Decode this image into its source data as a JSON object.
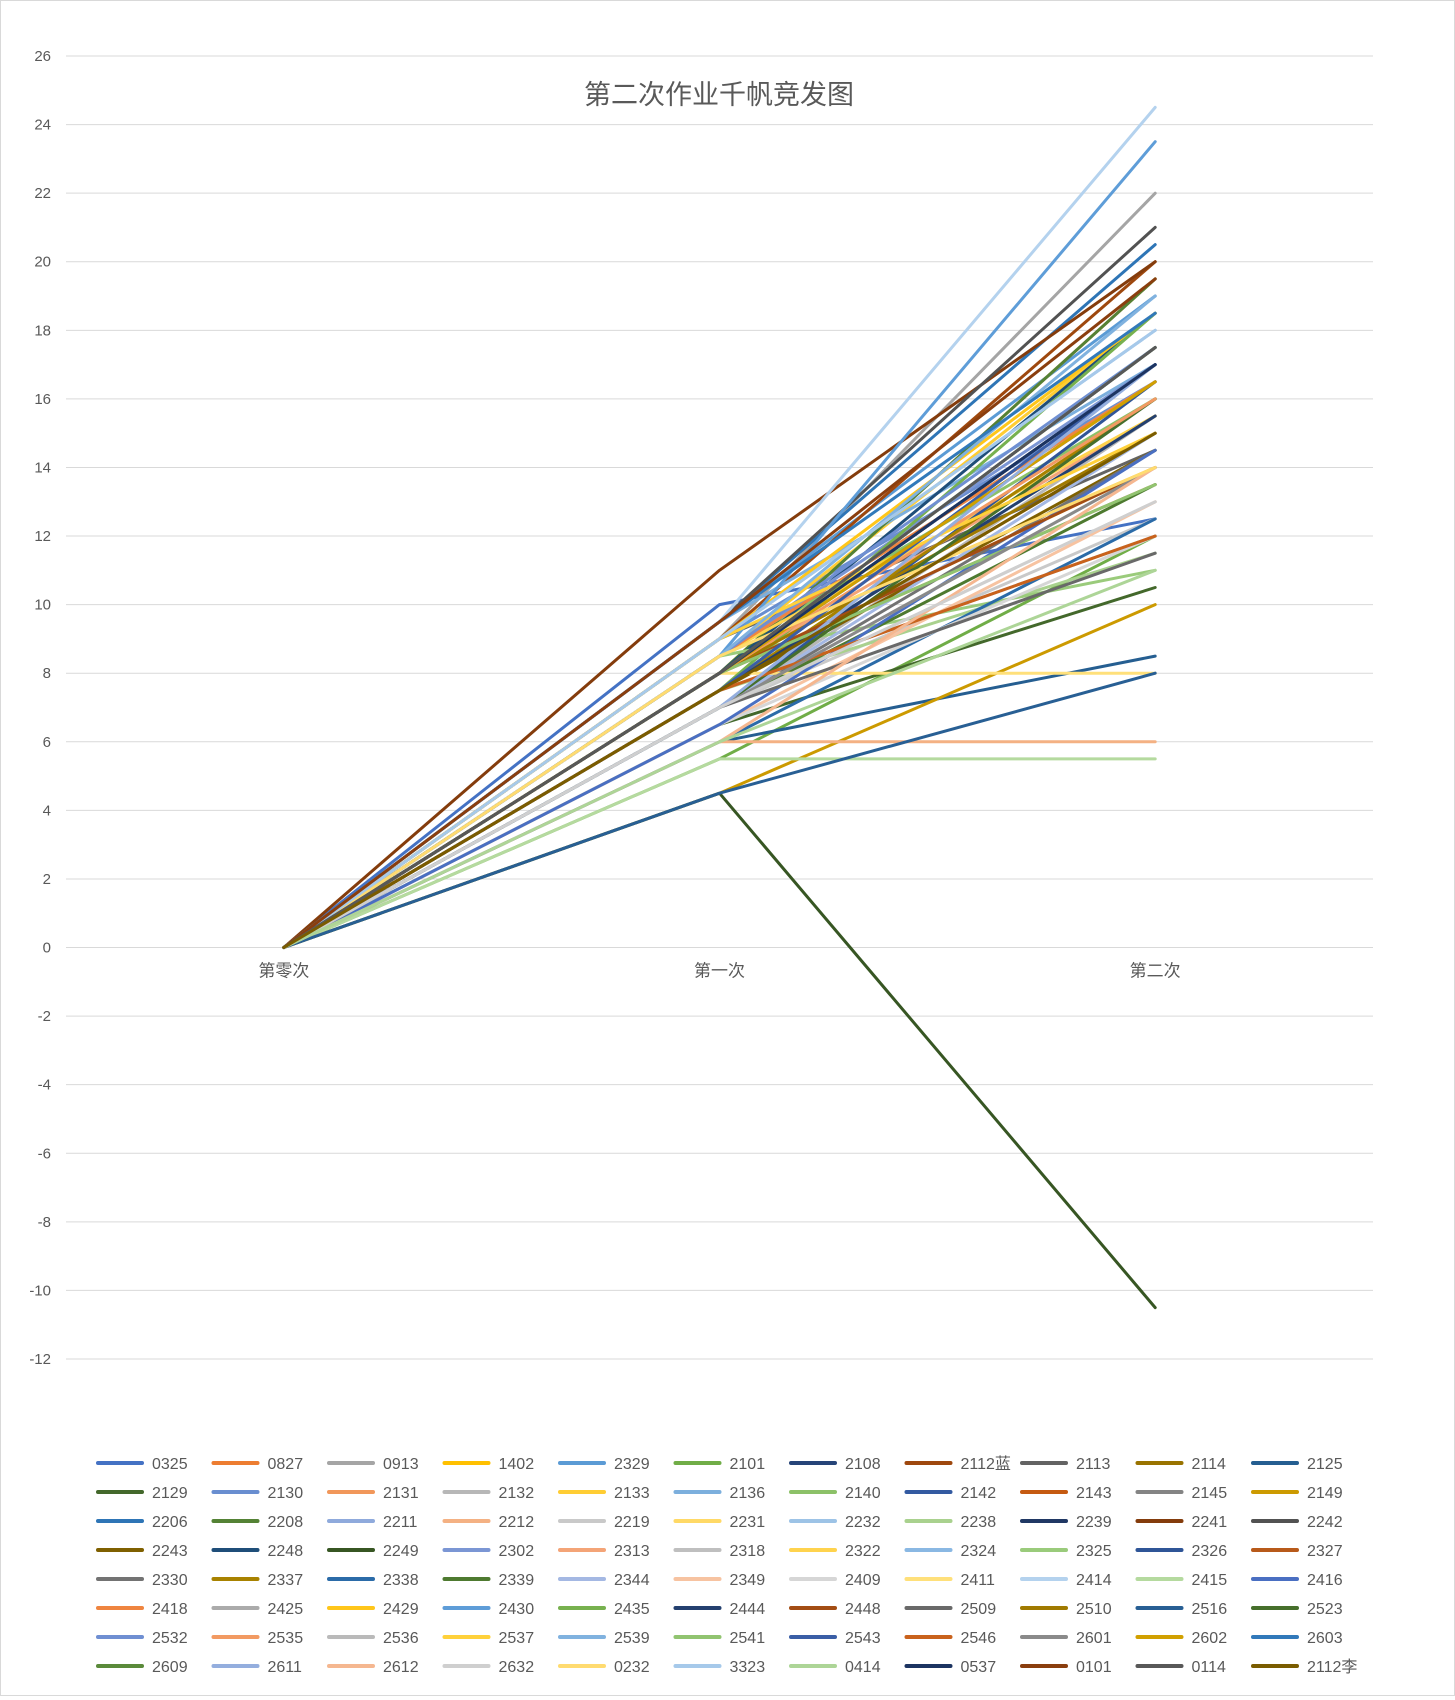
{
  "chart_data": {
    "type": "line",
    "title": "第二次作业千帆竞发图",
    "categories": [
      "第零次",
      "第一次",
      "第二次"
    ],
    "ylim": [
      -12,
      26
    ],
    "yticks": [
      -12,
      -10,
      -8,
      -6,
      -4,
      -2,
      0,
      2,
      4,
      6,
      8,
      10,
      12,
      14,
      16,
      18,
      20,
      22,
      24,
      26
    ],
    "grid": true,
    "legend_position": "bottom",
    "series": [
      {
        "name": "0325",
        "color": "#4472C4",
        "values": [
          0,
          10,
          12.5
        ]
      },
      {
        "name": "0827",
        "color": "#ED7D31",
        "values": [
          0,
          8,
          14
        ]
      },
      {
        "name": "0913",
        "color": "#A5A5A5",
        "values": [
          0,
          9,
          22
        ]
      },
      {
        "name": "1402",
        "color": "#FFC000",
        "values": [
          0,
          8.5,
          14
        ]
      },
      {
        "name": "2329",
        "color": "#5B9BD5",
        "values": [
          0,
          9.5,
          19
        ]
      },
      {
        "name": "2101",
        "color": "#70AD47",
        "values": [
          0,
          5.5,
          12
        ]
      },
      {
        "name": "2108",
        "color": "#264478",
        "values": [
          0,
          8,
          17
        ]
      },
      {
        "name": "2112蓝",
        "color": "#9E480E",
        "values": [
          0,
          9,
          20
        ]
      },
      {
        "name": "2113",
        "color": "#636363",
        "values": [
          0,
          9,
          14.5
        ]
      },
      {
        "name": "2114",
        "color": "#997300",
        "values": [
          0,
          7.5,
          16
        ]
      },
      {
        "name": "2125",
        "color": "#255E91",
        "values": [
          0,
          6,
          8.5
        ]
      },
      {
        "name": "2129",
        "color": "#43682B",
        "values": [
          0,
          6.5,
          10.5
        ]
      },
      {
        "name": "2130",
        "color": "#698ED0",
        "values": [
          0,
          9,
          16.5
        ]
      },
      {
        "name": "2131",
        "color": "#F1975A",
        "values": [
          0,
          8,
          19.5
        ]
      },
      {
        "name": "2132",
        "color": "#B7B7B7",
        "values": [
          0,
          7,
          15.5
        ]
      },
      {
        "name": "2133",
        "color": "#FFCD33",
        "values": [
          0,
          8.5,
          18.5
        ]
      },
      {
        "name": "2136",
        "color": "#7CAFDD",
        "values": [
          0,
          9.5,
          17
        ]
      },
      {
        "name": "2140",
        "color": "#8CC168",
        "values": [
          0,
          8.5,
          16
        ]
      },
      {
        "name": "2142",
        "color": "#335AA1",
        "values": [
          0,
          8,
          16.5
        ]
      },
      {
        "name": "2143",
        "color": "#C55A11",
        "values": [
          0,
          7.5,
          15
        ]
      },
      {
        "name": "2145",
        "color": "#848484",
        "values": [
          0,
          8,
          17.5
        ]
      },
      {
        "name": "2149",
        "color": "#CC9A00",
        "values": [
          0,
          4.5,
          10
        ]
      },
      {
        "name": "2206",
        "color": "#2E75B6",
        "values": [
          0,
          9.5,
          20.5
        ]
      },
      {
        "name": "2208",
        "color": "#548235",
        "values": [
          0,
          8,
          19.5
        ]
      },
      {
        "name": "2211",
        "color": "#8FAADC",
        "values": [
          0,
          7.5,
          17
        ]
      },
      {
        "name": "2212",
        "color": "#F4B183",
        "values": [
          0,
          6,
          6
        ]
      },
      {
        "name": "2219",
        "color": "#C9C9C9",
        "values": [
          0,
          7,
          12.5
        ]
      },
      {
        "name": "2231",
        "color": "#FFD966",
        "values": [
          0,
          8,
          14
        ]
      },
      {
        "name": "2232",
        "color": "#9DC3E6",
        "values": [
          0,
          8.5,
          16.5
        ]
      },
      {
        "name": "2238",
        "color": "#A9D18E",
        "values": [
          0,
          7.5,
          11.5
        ]
      },
      {
        "name": "2239",
        "color": "#203864",
        "values": [
          0,
          8,
          17
        ]
      },
      {
        "name": "2241",
        "color": "#843C0C",
        "values": [
          0,
          11,
          20
        ]
      },
      {
        "name": "2242",
        "color": "#525252",
        "values": [
          0,
          9.5,
          21
        ]
      },
      {
        "name": "2243",
        "color": "#7F6000",
        "values": [
          0,
          7.5,
          14.5
        ]
      },
      {
        "name": "2248",
        "color": "#1F4E79",
        "values": [
          0,
          8,
          18.5
        ]
      },
      {
        "name": "2249",
        "color": "#375623",
        "values": [
          0,
          4.5,
          -10.5
        ]
      },
      {
        "name": "2302",
        "color": "#7B96D4",
        "values": [
          0,
          8.5,
          17
        ]
      },
      {
        "name": "2313",
        "color": "#F4A477",
        "values": [
          0,
          8,
          15.5
        ]
      },
      {
        "name": "2318",
        "color": "#BFBFBF",
        "values": [
          0,
          7,
          13
        ]
      },
      {
        "name": "2322",
        "color": "#FFD34D",
        "values": [
          0,
          8.5,
          15.5
        ]
      },
      {
        "name": "2324",
        "color": "#8AB8E3",
        "values": [
          0,
          9,
          18
        ]
      },
      {
        "name": "2325",
        "color": "#9ACB7B",
        "values": [
          0,
          8.5,
          11
        ]
      },
      {
        "name": "2326",
        "color": "#2F5597",
        "values": [
          0,
          7,
          16.5
        ]
      },
      {
        "name": "2327",
        "color": "#B85A1A",
        "values": [
          0,
          8,
          13.5
        ]
      },
      {
        "name": "2330",
        "color": "#737373",
        "values": [
          0,
          7,
          14.5
        ]
      },
      {
        "name": "2337",
        "color": "#A88200",
        "values": [
          0,
          7.5,
          16
        ]
      },
      {
        "name": "2338",
        "color": "#2B6BA8",
        "values": [
          0,
          6,
          12.5
        ]
      },
      {
        "name": "2339",
        "color": "#4E7A30",
        "values": [
          0,
          7,
          13.5
        ]
      },
      {
        "name": "2344",
        "color": "#A4B8E3",
        "values": [
          0,
          7,
          15
        ]
      },
      {
        "name": "2349",
        "color": "#F7C3A1",
        "values": [
          0,
          6.5,
          13
        ]
      },
      {
        "name": "2409",
        "color": "#D6D6D6",
        "values": [
          0,
          6.5,
          12
        ]
      },
      {
        "name": "2411",
        "color": "#FFE07A",
        "values": [
          0,
          8,
          8
        ]
      },
      {
        "name": "2414",
        "color": "#B4D2EE",
        "values": [
          0,
          9.5,
          24.5
        ]
      },
      {
        "name": "2415",
        "color": "#B5DA9F",
        "values": [
          0,
          5.5,
          5.5
        ]
      },
      {
        "name": "2416",
        "color": "#4A6FC2",
        "values": [
          0,
          6.5,
          14.5
        ]
      },
      {
        "name": "2418",
        "color": "#EF8540",
        "values": [
          0,
          8.5,
          16.5
        ]
      },
      {
        "name": "2425",
        "color": "#ABABAB",
        "values": [
          0,
          7.5,
          12
        ]
      },
      {
        "name": "2429",
        "color": "#FFC61A",
        "values": [
          0,
          9,
          18.5
        ]
      },
      {
        "name": "2430",
        "color": "#5E9DD8",
        "values": [
          0,
          8.5,
          23.5
        ]
      },
      {
        "name": "2435",
        "color": "#77B14F",
        "values": [
          0,
          7.5,
          18.5
        ]
      },
      {
        "name": "2444",
        "color": "#24406F",
        "values": [
          0,
          7.5,
          15.5
        ]
      },
      {
        "name": "2448",
        "color": "#A34D14",
        "values": [
          0,
          8,
          14
        ]
      },
      {
        "name": "2509",
        "color": "#696969",
        "values": [
          0,
          7,
          11.5
        ]
      },
      {
        "name": "2510",
        "color": "#A07A00",
        "values": [
          0,
          8,
          15
        ]
      },
      {
        "name": "2516",
        "color": "#285F94",
        "values": [
          0,
          4.5,
          8
        ]
      },
      {
        "name": "2523",
        "color": "#466F2C",
        "values": [
          0,
          7,
          16
        ]
      },
      {
        "name": "2532",
        "color": "#6F8FD2",
        "values": [
          0,
          8.5,
          17.5
        ]
      },
      {
        "name": "2535",
        "color": "#F29A62",
        "values": [
          0,
          8,
          16
        ]
      },
      {
        "name": "2536",
        "color": "#BABABA",
        "values": [
          0,
          7,
          14
        ]
      },
      {
        "name": "2537",
        "color": "#FFD13A",
        "values": [
          0,
          9,
          15
        ]
      },
      {
        "name": "2539",
        "color": "#80B2DF",
        "values": [
          0,
          8.5,
          19
        ]
      },
      {
        "name": "2541",
        "color": "#91C470",
        "values": [
          0,
          8,
          13.5
        ]
      },
      {
        "name": "2543",
        "color": "#3A5EA6",
        "values": [
          0,
          7.5,
          17
        ]
      },
      {
        "name": "2546",
        "color": "#C9621C",
        "values": [
          0,
          7.5,
          12
        ]
      },
      {
        "name": "2601",
        "color": "#8A8A8A",
        "values": [
          0,
          7,
          14
        ]
      },
      {
        "name": "2602",
        "color": "#D1A000",
        "values": [
          0,
          8,
          16.5
        ]
      },
      {
        "name": "2603",
        "color": "#3179BA",
        "values": [
          0,
          9.5,
          18.5
        ]
      },
      {
        "name": "2609",
        "color": "#5A8A3A",
        "values": [
          0,
          8,
          17.5
        ]
      },
      {
        "name": "2611",
        "color": "#94AEDE",
        "values": [
          0,
          7,
          17
        ]
      },
      {
        "name": "2612",
        "color": "#F5B790",
        "values": [
          0,
          6,
          14
        ]
      },
      {
        "name": "2632",
        "color": "#CFCFCF",
        "values": [
          0,
          7,
          13
        ]
      },
      {
        "name": "0232",
        "color": "#FFDB70",
        "values": [
          0,
          8.5,
          14
        ]
      },
      {
        "name": "3323",
        "color": "#A6C9EA",
        "values": [
          0,
          9,
          18
        ]
      },
      {
        "name": "0414",
        "color": "#ADD597",
        "values": [
          0,
          6,
          11
        ]
      },
      {
        "name": "0537",
        "color": "#1C3461",
        "values": [
          0,
          8,
          17
        ]
      },
      {
        "name": "0101",
        "color": "#8A3E0E",
        "values": [
          0,
          9.5,
          19.5
        ]
      },
      {
        "name": "0114",
        "color": "#585858",
        "values": [
          0,
          8,
          17.5
        ]
      },
      {
        "name": "2112李",
        "color": "#7A5C00",
        "values": [
          0,
          7.5,
          15
        ]
      }
    ]
  }
}
